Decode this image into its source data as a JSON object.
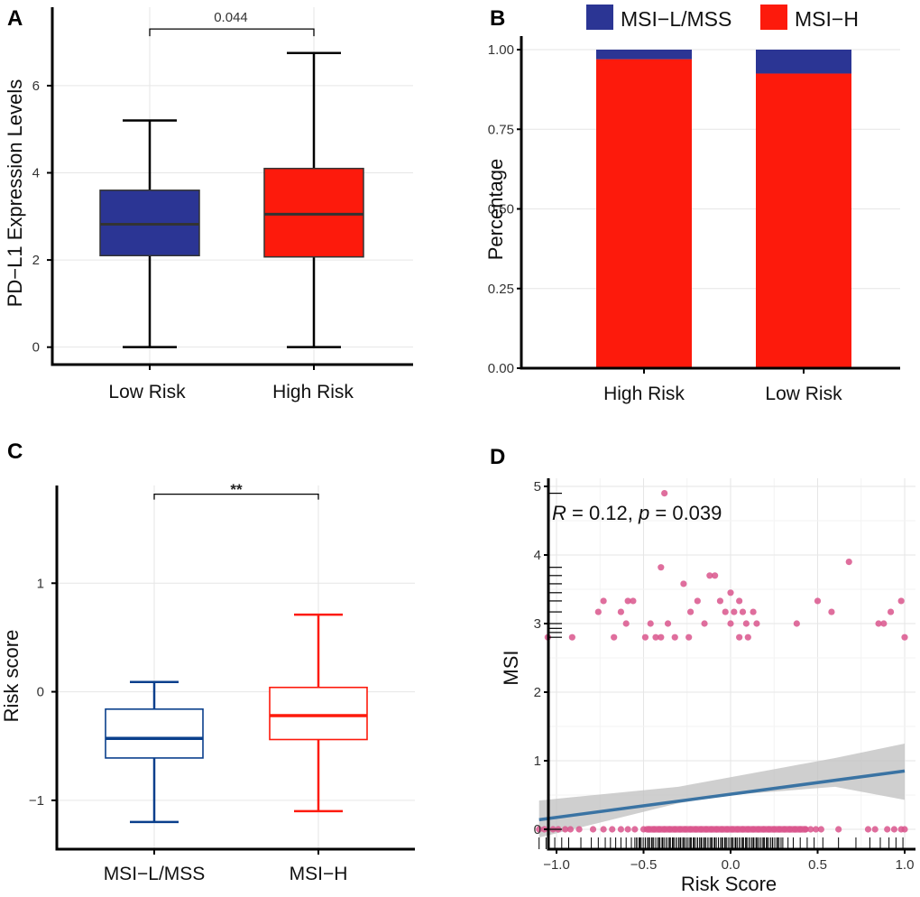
{
  "colors": {
    "blue": "#2b3594",
    "red": "#fd1a0c",
    "darkblue": "#0a3f8c",
    "pink": "#d9558c",
    "fitline": "#3a73a3",
    "band": "#bfbfbf"
  },
  "chart_data": [
    {
      "id": "A",
      "panel_label": "A",
      "type": "box",
      "ylabel": "PD−L1 Expression Levels",
      "ylim": [
        -0.4,
        7.8
      ],
      "yticks": [
        0,
        2,
        4,
        6
      ],
      "ytick_labels": [
        "0",
        "2",
        "4",
        "6"
      ],
      "categories": [
        "Low Risk",
        "High Risk"
      ],
      "boxes": [
        {
          "name": "Low Risk",
          "min": 0,
          "q1": 2.1,
          "median": 2.82,
          "q3": 3.6,
          "max": 5.2,
          "color": "blue"
        },
        {
          "name": "High Risk",
          "min": 0,
          "q1": 2.07,
          "median": 3.05,
          "q3": 4.1,
          "max": 6.75,
          "color": "red"
        }
      ],
      "comparison": {
        "label": "0.044",
        "y": 7.3
      }
    },
    {
      "id": "B",
      "panel_label": "B",
      "type": "bar",
      "stacked": true,
      "ylabel": "Percentage",
      "ylim": [
        0,
        1.0
      ],
      "yticks": [
        0,
        0.25,
        0.5,
        0.75,
        1.0
      ],
      "ytick_labels": [
        "0.00",
        "0.25",
        "0.50",
        "0.75",
        "1.00"
      ],
      "categories": [
        "High Risk",
        "Low Risk"
      ],
      "series": [
        {
          "name": "MSI−H",
          "color": "red",
          "values": [
            0.97,
            0.925
          ]
        },
        {
          "name": "MSI−L/MSS",
          "color": "blue",
          "values": [
            0.03,
            0.075
          ]
        }
      ],
      "legend": [
        "MSI−L/MSS",
        "MSI−H"
      ],
      "legend_position": "top"
    },
    {
      "id": "C",
      "panel_label": "C",
      "type": "box",
      "ylabel": "Risk score",
      "ylim": [
        -1.45,
        1.9
      ],
      "yticks": [
        -1,
        0,
        1
      ],
      "ytick_labels": [
        "−1",
        "0",
        "1"
      ],
      "categories": [
        "MSI−L/MSS",
        "MSI−H"
      ],
      "boxes": [
        {
          "name": "MSI−L/MSS",
          "min": -1.2,
          "q1": -0.61,
          "median": -0.43,
          "q3": -0.16,
          "max": 0.09,
          "color": "darkblue"
        },
        {
          "name": "MSI−H",
          "min": -1.1,
          "q1": -0.44,
          "median": -0.22,
          "q3": 0.04,
          "max": 0.71,
          "color": "red"
        }
      ],
      "comparison": {
        "label": "**",
        "y": 1.82
      }
    },
    {
      "id": "D",
      "panel_label": "D",
      "type": "scatter",
      "xlabel": "Risk Score",
      "ylabel": "MSI",
      "xlim": [
        -1.13,
        1.03
      ],
      "ylim": [
        -0.22,
        5.0
      ],
      "xticks": [
        -1.0,
        -0.5,
        0.0,
        0.5,
        1.0
      ],
      "xtick_labels": [
        "−1.0",
        "−0.5",
        "0.0",
        "0.5",
        "1.0"
      ],
      "yticks": [
        0,
        1,
        2,
        3,
        4,
        5
      ],
      "ytick_labels": [
        "0",
        "1",
        "2",
        "3",
        "4",
        "5"
      ],
      "annotation": {
        "R_label": "R",
        "R_text": " = 0.12, ",
        "p_label": "p",
        "p_text": " = 0.039"
      },
      "fit": {
        "x0": -1.1,
        "y0": 0.14,
        "x1": 1.0,
        "y1": 0.85
      },
      "band": {
        "upper": [
          [
            -1.1,
            0.42
          ],
          [
            -0.3,
            0.62
          ],
          [
            0.0,
            0.76
          ],
          [
            0.3,
            0.9
          ],
          [
            0.6,
            1.04
          ],
          [
            1.0,
            1.25
          ]
        ],
        "lower": [
          [
            -1.1,
            -0.12
          ],
          [
            -0.3,
            0.38
          ],
          [
            0.0,
            0.5
          ],
          [
            0.3,
            0.56
          ],
          [
            0.6,
            0.62
          ],
          [
            1.0,
            0.43
          ]
        ]
      },
      "points": [
        [
          -1.05,
          2.8
        ],
        [
          -0.91,
          2.8
        ],
        [
          -0.76,
          3.17
        ],
        [
          -0.73,
          3.33
        ],
        [
          -0.67,
          2.8
        ],
        [
          -0.63,
          3.17
        ],
        [
          -0.59,
          3.33
        ],
        [
          -0.6,
          3.0
        ],
        [
          -0.56,
          3.33
        ],
        [
          -0.49,
          2.8
        ],
        [
          -0.46,
          3.0
        ],
        [
          -0.43,
          2.8
        ],
        [
          -0.4,
          2.8
        ],
        [
          -0.36,
          3.0
        ],
        [
          -0.32,
          2.8
        ],
        [
          -0.27,
          3.58
        ],
        [
          -0.23,
          3.17
        ],
        [
          -0.24,
          2.8
        ],
        [
          -0.19,
          3.33
        ],
        [
          -0.15,
          3.0
        ],
        [
          -0.12,
          3.7
        ],
        [
          -0.09,
          3.7
        ],
        [
          -0.06,
          3.33
        ],
        [
          -0.03,
          3.17
        ],
        [
          0.0,
          3.45
        ],
        [
          0.0,
          3.0
        ],
        [
          0.05,
          3.33
        ],
        [
          0.02,
          3.17
        ],
        [
          0.05,
          2.8
        ],
        [
          0.07,
          3.17
        ],
        [
          0.09,
          3.0
        ],
        [
          0.1,
          2.8
        ],
        [
          0.13,
          3.17
        ],
        [
          0.15,
          3.0
        ],
        [
          0.38,
          3.0
        ],
        [
          0.5,
          3.33
        ],
        [
          0.58,
          3.17
        ],
        [
          0.68,
          3.9
        ],
        [
          0.85,
          3.0
        ],
        [
          0.88,
          3.0
        ],
        [
          0.98,
          3.33
        ],
        [
          0.92,
          3.17
        ],
        [
          1.0,
          2.8
        ],
        [
          -0.4,
          3.82
        ],
        [
          -0.38,
          4.9
        ]
      ],
      "zero_x": [
        -1.1,
        -1.07,
        -1.02,
        -0.99,
        -0.95,
        -0.92,
        -0.87,
        -0.79,
        -0.73,
        -0.68,
        -0.63,
        -0.59,
        -0.55,
        -0.5,
        -0.47,
        -0.44,
        -0.41,
        -0.38,
        -0.35,
        -0.32,
        -0.29,
        -0.26,
        -0.23,
        -0.2,
        -0.17,
        -0.14,
        -0.11,
        -0.08,
        -0.05,
        -0.02,
        0.01,
        0.04,
        0.07,
        0.1,
        0.13,
        0.16,
        0.19,
        0.22,
        0.25,
        0.28,
        0.31,
        0.34,
        0.37,
        0.4,
        0.43,
        0.46,
        0.49,
        0.52,
        0.62,
        0.79,
        0.83,
        0.9,
        0.94,
        0.98,
        1.0
      ],
      "rug_x": [
        -1.1,
        -1.06,
        -1.01,
        -0.97,
        -0.93,
        -0.86,
        -0.8,
        -0.76,
        -0.72,
        -0.69,
        -0.66,
        -0.63,
        -0.6,
        -0.57,
        -0.54,
        -0.52,
        -0.49,
        -0.47,
        -0.45,
        -0.43,
        -0.41,
        -0.39,
        -0.37,
        -0.35,
        -0.33,
        -0.31,
        -0.29,
        -0.27,
        -0.25,
        -0.23,
        -0.21,
        -0.19,
        -0.17,
        -0.15,
        -0.13,
        -0.11,
        -0.09,
        -0.07,
        -0.05,
        -0.03,
        -0.01,
        0.01,
        0.03,
        0.05,
        0.07,
        0.09,
        0.11,
        0.13,
        0.15,
        0.17,
        0.19,
        0.21,
        0.24,
        0.27,
        0.3,
        0.33,
        0.36,
        0.4,
        0.44,
        0.48,
        0.53,
        0.62,
        0.72,
        0.8,
        0.86,
        0.91,
        0.95,
        0.99
      ],
      "rug_y": [
        2.8,
        2.87,
        2.93,
        3.0,
        3.17,
        3.33,
        3.45,
        3.58,
        3.7,
        3.82
      ]
    }
  ]
}
